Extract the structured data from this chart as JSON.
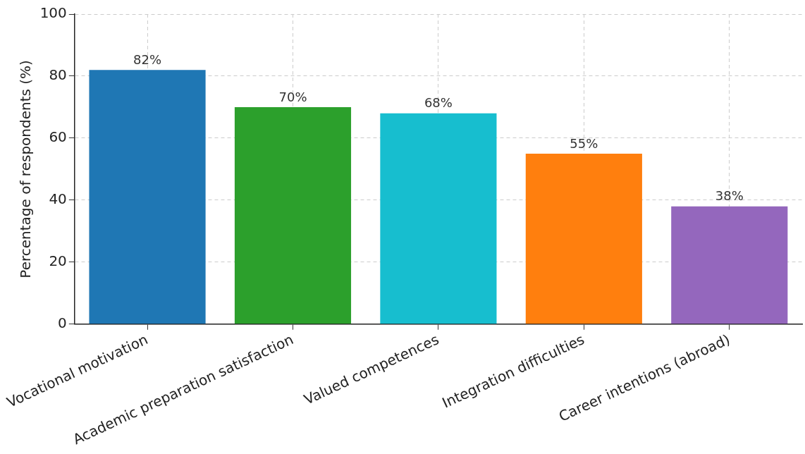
{
  "chart_data": {
    "type": "bar",
    "ylabel": "Percentage of respondents (%)",
    "categories": [
      "Vocational motivation",
      "Academic preparation satisfaction",
      "Valued competences",
      "Integration difficulties",
      "Career intentions (abroad)"
    ],
    "values": [
      82,
      70,
      68,
      55,
      38
    ],
    "colors": [
      "#1f77b4",
      "#2ca02c",
      "#17becf",
      "#ff7f0e",
      "#9467bd"
    ],
    "value_labels": [
      "82%",
      "70%",
      "68%",
      "55%",
      "38%"
    ],
    "ylim": [
      0,
      100
    ],
    "yticks": [
      0,
      20,
      40,
      60,
      80,
      100
    ],
    "grid": true
  }
}
